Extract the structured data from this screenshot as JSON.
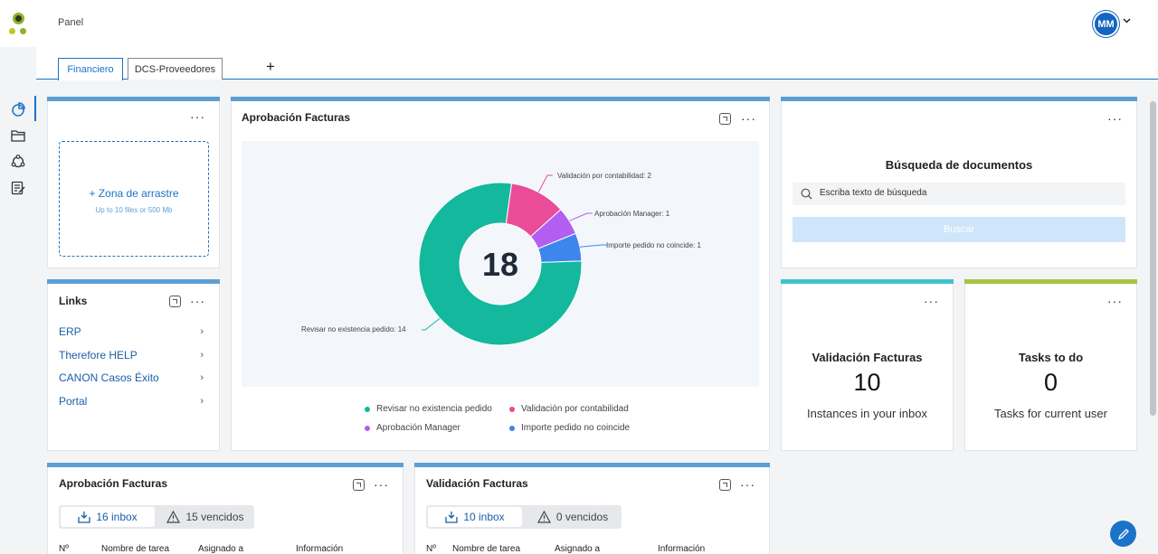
{
  "header": {
    "title": "Panel",
    "avatar_initials": "MM"
  },
  "rail": {
    "items": [
      "dashboard-icon",
      "folder-icon",
      "workflow-icon",
      "tasks-icon"
    ]
  },
  "tabs": [
    {
      "label": "Financiero",
      "active": true
    },
    {
      "label": "DCS-Proveedores",
      "active": false
    }
  ],
  "upload": {
    "title": "+ Zona de arrastre",
    "subtitle": "Up to 10 files or 500 Mb"
  },
  "links": {
    "title": "Links",
    "items": [
      "ERP",
      "Therefore HELP",
      "CANON Casos Éxito",
      "Portal"
    ]
  },
  "chart_widget": {
    "title": "Aprobación Facturas"
  },
  "chart_data": {
    "type": "pie",
    "donut": true,
    "total_label": "18",
    "categories": [
      "Revisar no existencia pedido",
      "Validación por contabilidad",
      "Aprobación Manager",
      "Importe pedido no coincide"
    ],
    "values": [
      14,
      2,
      1,
      1
    ],
    "colors": [
      "#14b89c",
      "#ea4c9a",
      "#b35ef0",
      "#3d86ee"
    ],
    "annotations": [
      "Revisar no existencia pedido: 14",
      "Validación por contabilidad: 2",
      "Aprobación Manager: 1",
      "Importe pedido no coincide: 1"
    ],
    "legend": "bottom"
  },
  "search": {
    "title": "Búsqueda de documentos",
    "placeholder": "Escriba texto de búsqueda",
    "button": "Buscar"
  },
  "kpi_validacion": {
    "title": "Validación Facturas",
    "value": "10",
    "subtitle": "Instances in your inbox"
  },
  "kpi_tasks": {
    "title": "Tasks to do",
    "value": "0",
    "subtitle": "Tasks for current user"
  },
  "list_aprobacion": {
    "title": "Aprobación Facturas",
    "inbox": "16 inbox",
    "vencidos": "15 vencidos",
    "columns": [
      "Nº",
      "Nombre de tarea",
      "Asignado a",
      "Información"
    ]
  },
  "list_validacion": {
    "title": "Validación Facturas",
    "inbox": "10 inbox",
    "vencidos": "0 vencidos",
    "columns": [
      "Nº",
      "Nombre de tarea",
      "Asignado a",
      "Información"
    ]
  },
  "colors": {
    "accent": "#1a73c8",
    "widget_bar": "#5b9fd6",
    "teal_bar": "#3fc1d0",
    "green_bar": "#a9c23f"
  }
}
